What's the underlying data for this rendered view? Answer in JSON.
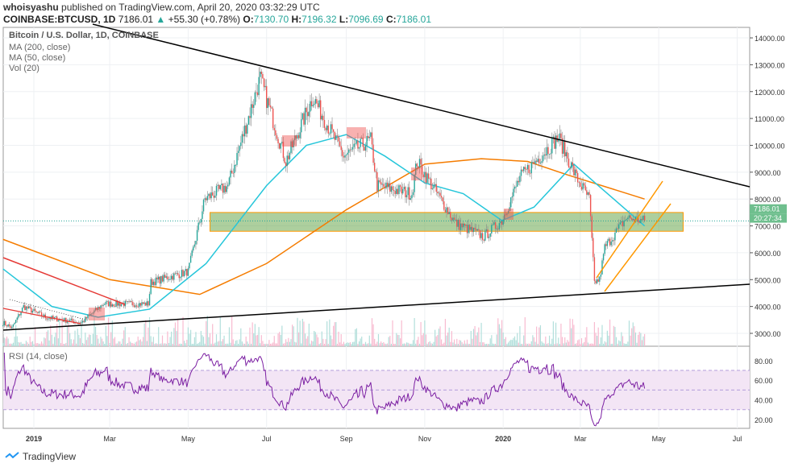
{
  "header": {
    "author": "whoisyashu",
    "published": "published on TradingView.com, April 20, 2020 03:32:29 UTC",
    "symbol": "COINBASE:BTCUSD, 1D",
    "last": "7186.01",
    "change": "+55.30 (+0.78%)",
    "o_label": "O:",
    "o": "7130.70",
    "h_label": "H:",
    "h": "7196.32",
    "l_label": "L:",
    "l": "7096.69",
    "c_label": "C:",
    "c": "7186.01"
  },
  "legend": [
    "Bitcoin / U.S. Dollar, 1D, COINBASE",
    "MA (200, close)",
    "MA (50, close)",
    "Vol (20)"
  ],
  "rsi_label": "RSI (14, close)",
  "price_tag": "7186.01",
  "countdown": "20:27:34",
  "branding": "TradingView",
  "colors": {
    "up": "#26a69a",
    "down": "#ef5350",
    "ma200": "#f57c00",
    "ma50": "#26c6da",
    "rsi": "#7b1fa2",
    "zone": "#6aa84f",
    "channel": "#ff9800",
    "trend": "#000000",
    "red_trend": "#e53935"
  },
  "chart_data": {
    "type": "candlestick",
    "title": "Bitcoin / U.S. Dollar, 1D, COINBASE",
    "ylim": [
      2600,
      14300
    ],
    "y_ticks": [
      "14000.00",
      "13000.00",
      "12000.00",
      "11000.00",
      "10000.00",
      "9000.00",
      "8000.00",
      "7000.00",
      "6000.00",
      "5000.00",
      "4000.00",
      "3000.00"
    ],
    "x_ticks": [
      {
        "label": "2019",
        "date": "2019-01-01"
      },
      {
        "label": "Mar",
        "date": "2019-03-01"
      },
      {
        "label": "May",
        "date": "2019-05-01"
      },
      {
        "label": "Jul",
        "date": "2019-07-01"
      },
      {
        "label": "Sep",
        "date": "2019-09-01"
      },
      {
        "label": "Nov",
        "date": "2019-11-01"
      },
      {
        "label": "2020",
        "date": "2020-01-01"
      },
      {
        "label": "Mar",
        "date": "2020-03-01"
      },
      {
        "label": "May",
        "date": "2020-05-01"
      },
      {
        "label": "Jul",
        "date": "2020-07-01"
      }
    ],
    "close_keypoints": [
      [
        "2018-12-08",
        3400
      ],
      [
        "2018-12-15",
        3200
      ],
      [
        "2018-12-24",
        4000
      ],
      [
        "2019-01-10",
        3600
      ],
      [
        "2019-02-07",
        3400
      ],
      [
        "2019-02-24",
        4100
      ],
      [
        "2019-03-31",
        4100
      ],
      [
        "2019-04-02",
        4900
      ],
      [
        "2019-05-01",
        5300
      ],
      [
        "2019-05-14",
        8000
      ],
      [
        "2019-06-01",
        8500
      ],
      [
        "2019-06-26",
        12500
      ],
      [
        "2019-07-16",
        9400
      ],
      [
        "2019-08-06",
        11800
      ],
      [
        "2019-08-30",
        9600
      ],
      [
        "2019-09-20",
        10200
      ],
      [
        "2019-09-25",
        8500
      ],
      [
        "2019-10-22",
        8200
      ],
      [
        "2019-10-26",
        9400
      ],
      [
        "2019-11-25",
        7100
      ],
      [
        "2019-12-17",
        6600
      ],
      [
        "2019-12-31",
        7200
      ],
      [
        "2020-01-14",
        8800
      ],
      [
        "2020-02-13",
        10300
      ],
      [
        "2020-02-27",
        8800
      ],
      [
        "2020-03-08",
        8000
      ],
      [
        "2020-03-12",
        4900
      ],
      [
        "2020-03-16",
        5000
      ],
      [
        "2020-03-20",
        6200
      ],
      [
        "2020-04-06",
        7300
      ],
      [
        "2020-04-20",
        7186
      ]
    ],
    "ma200": [
      [
        "2018-12-08",
        6500
      ],
      [
        "2019-03-01",
        5000
      ],
      [
        "2019-05-10",
        4450
      ],
      [
        "2019-07-01",
        5600
      ],
      [
        "2019-09-01",
        7600
      ],
      [
        "2019-11-01",
        9300
      ],
      [
        "2019-12-15",
        9500
      ],
      [
        "2020-01-20",
        9400
      ],
      [
        "2020-02-20",
        8900
      ],
      [
        "2020-04-20",
        8000
      ]
    ],
    "ma50": [
      [
        "2018-12-08",
        5400
      ],
      [
        "2019-01-15",
        4000
      ],
      [
        "2019-02-20",
        3600
      ],
      [
        "2019-04-01",
        3900
      ],
      [
        "2019-05-15",
        5600
      ],
      [
        "2019-07-01",
        8500
      ],
      [
        "2019-08-01",
        10000
      ],
      [
        "2019-09-01",
        10400
      ],
      [
        "2019-10-01",
        9600
      ],
      [
        "2019-11-01",
        8600
      ],
      [
        "2019-12-01",
        8200
      ],
      [
        "2019-12-31",
        7200
      ],
      [
        "2020-01-25",
        7700
      ],
      [
        "2020-02-25",
        9300
      ],
      [
        "2020-03-15",
        8500
      ],
      [
        "2020-04-20",
        7000
      ]
    ],
    "support_zone": {
      "from": "2019-05-18",
      "to": "2020-05-20",
      "low": 6800,
      "high": 7500
    },
    "rsi": {
      "ylim": [
        10,
        90
      ],
      "ticks": [
        "80.00",
        "60.00",
        "40.00",
        "20.00"
      ],
      "band": [
        30,
        70
      ]
    }
  }
}
